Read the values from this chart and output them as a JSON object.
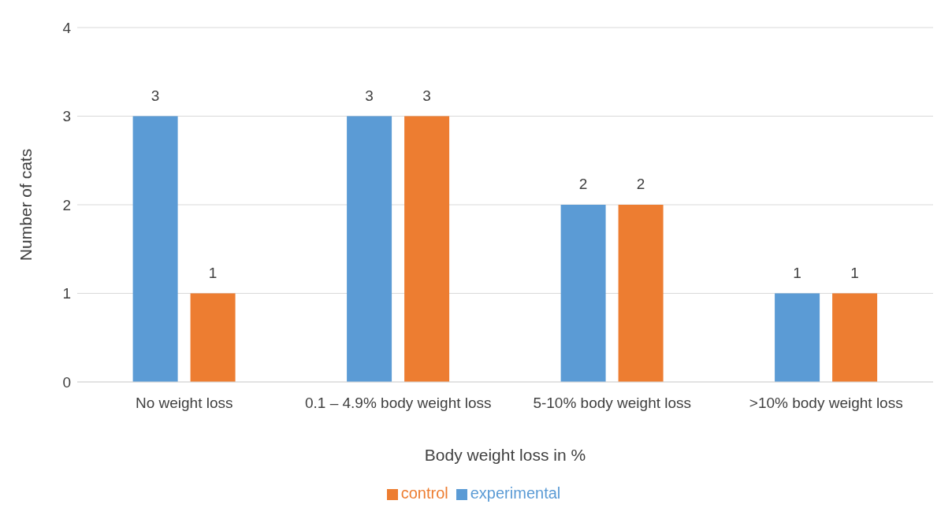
{
  "chart_data": {
    "type": "bar",
    "xlabel": "Body weight loss in %",
    "ylabel": "Number of cats",
    "categories": [
      "No weight loss",
      "0.1 – 4.9% body weight loss",
      "5-10% body weight loss",
      ">10% body weight loss"
    ],
    "series": [
      {
        "name": "experimental",
        "color": "#5b9bd5",
        "values": [
          3,
          3,
          2,
          1
        ]
      },
      {
        "name": "control",
        "color": "#ed7d31",
        "values": [
          1,
          3,
          2,
          1
        ]
      }
    ],
    "ylim": [
      0,
      4
    ],
    "yticks": [
      0,
      1,
      2,
      3,
      4
    ],
    "grid": "y",
    "legend": "bottom",
    "data_labels": true
  }
}
